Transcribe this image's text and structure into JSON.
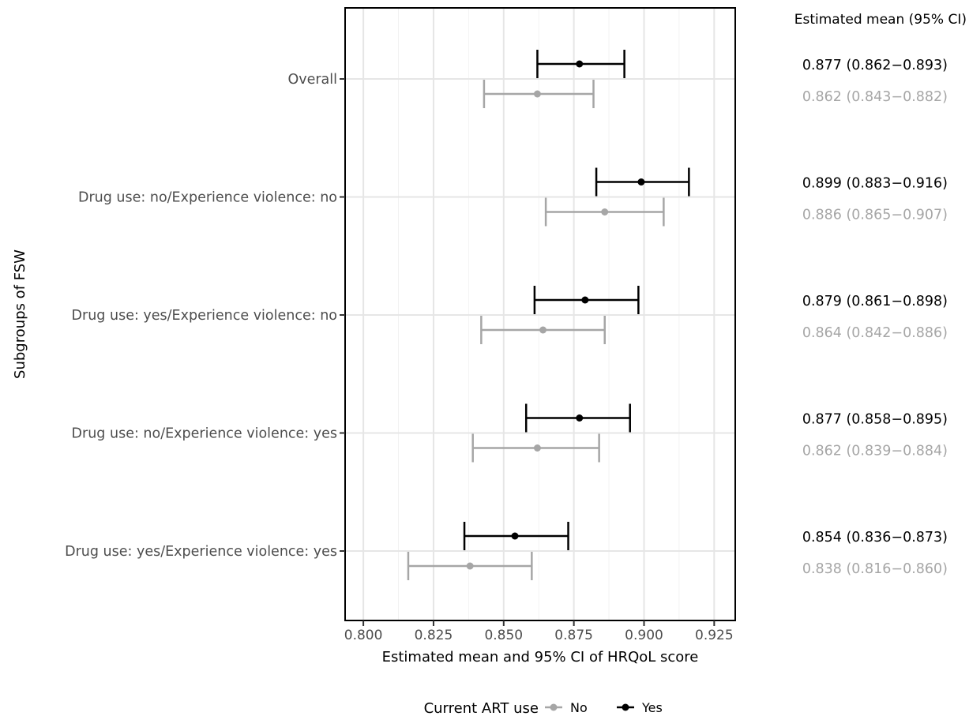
{
  "chart_data": {
    "type": "forest",
    "xlabel": "Estimated mean and 95% CI of HRQoL score",
    "ylabel": "Subgroups of FSW",
    "xlim": [
      0.7935,
      0.9325
    ],
    "xticks": [
      0.8,
      0.825,
      0.85,
      0.875,
      0.9,
      0.925
    ],
    "xtick_labels": [
      "0.800",
      "0.825",
      "0.850",
      "0.875",
      "0.900",
      "0.925"
    ],
    "grid": true,
    "legend": {
      "title": "Current ART use",
      "placement": "bottom",
      "items": [
        {
          "name": "No",
          "color": "#a6a6a6"
        },
        {
          "name": "Yes",
          "color": "#000000"
        }
      ]
    },
    "side_table_header": "Estimated mean (95% CI)",
    "categories": [
      "Overall",
      "Drug use: no/Experience violence: no",
      "Drug use: yes/Experience violence: no",
      "Drug use: no/Experience violence: yes",
      "Drug use: yes/Experience violence: yes"
    ],
    "series": [
      {
        "name": "Yes",
        "color": "#000000",
        "points": [
          {
            "mean": 0.877,
            "lo": 0.862,
            "hi": 0.893,
            "label": "0.877 (0.862−0.893)"
          },
          {
            "mean": 0.899,
            "lo": 0.883,
            "hi": 0.916,
            "label": "0.899 (0.883−0.916)"
          },
          {
            "mean": 0.879,
            "lo": 0.861,
            "hi": 0.898,
            "label": "0.879 (0.861−0.898)"
          },
          {
            "mean": 0.877,
            "lo": 0.858,
            "hi": 0.895,
            "label": "0.877 (0.858−0.895)"
          },
          {
            "mean": 0.854,
            "lo": 0.836,
            "hi": 0.873,
            "label": "0.854 (0.836−0.873)"
          }
        ]
      },
      {
        "name": "No",
        "color": "#a6a6a6",
        "points": [
          {
            "mean": 0.862,
            "lo": 0.843,
            "hi": 0.882,
            "label": "0.862 (0.843−0.882)"
          },
          {
            "mean": 0.886,
            "lo": 0.865,
            "hi": 0.907,
            "label": "0.886 (0.865−0.907)"
          },
          {
            "mean": 0.864,
            "lo": 0.842,
            "hi": 0.886,
            "label": "0.864 (0.842−0.886)"
          },
          {
            "mean": 0.862,
            "lo": 0.839,
            "hi": 0.884,
            "label": "0.862 (0.839−0.884)"
          },
          {
            "mean": 0.838,
            "lo": 0.816,
            "hi": 0.86,
            "label": "0.838 (0.816−0.860)"
          }
        ]
      }
    ]
  }
}
